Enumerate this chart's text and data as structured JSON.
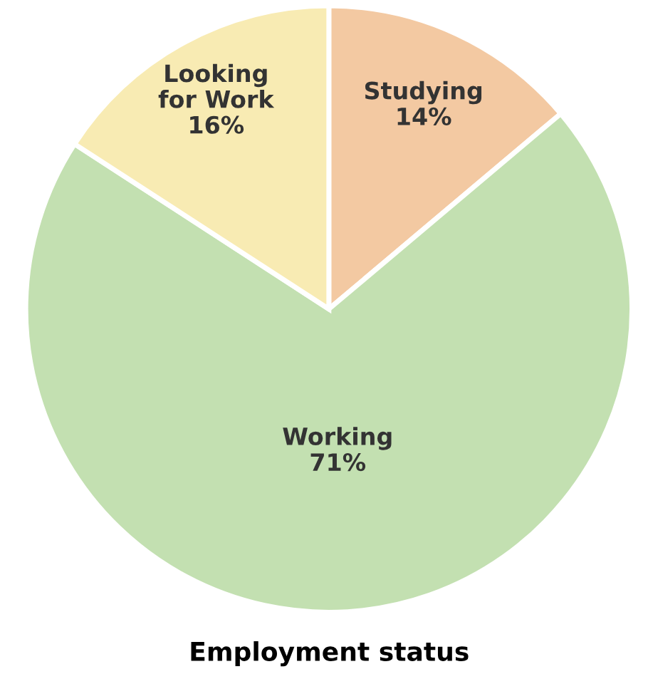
{
  "chart_data": {
    "type": "pie",
    "title": "Employment status",
    "categories": [
      "Studying",
      "Working",
      "Looking\nfor Work"
    ],
    "values": [
      14,
      71,
      16
    ],
    "value_labels": [
      "14%",
      "71%",
      "16%"
    ],
    "colors": [
      "#f3c9a2",
      "#c3e0b1",
      "#f8ebb3"
    ]
  }
}
